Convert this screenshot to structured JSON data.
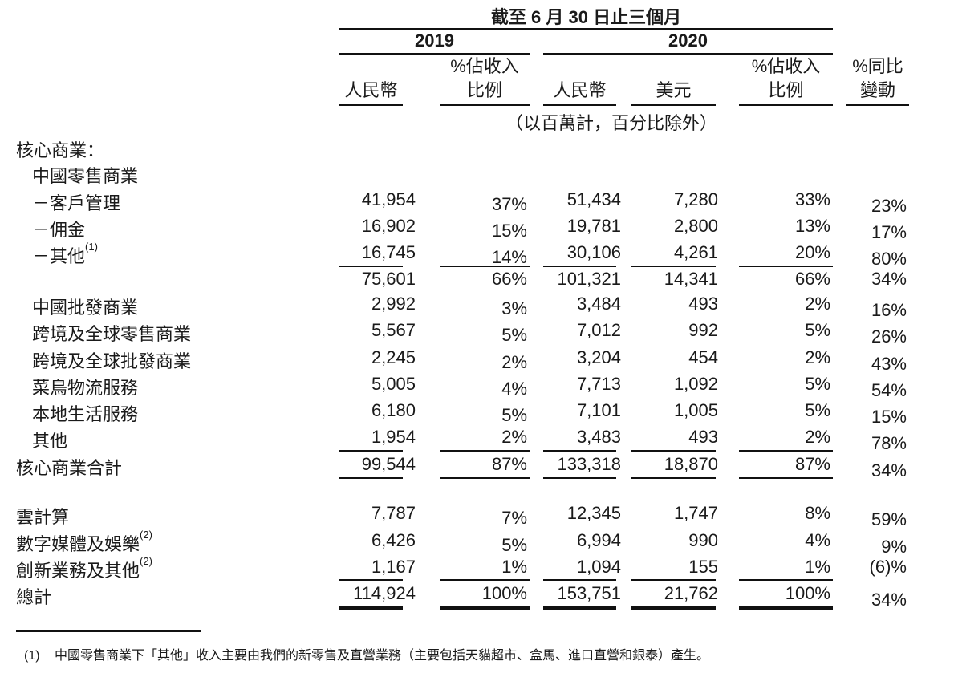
{
  "header": {
    "period_title": "截至 6 月 30 日止三個月",
    "year_2019": "2019",
    "year_2020": "2020",
    "columns": [
      {
        "line1": "",
        "line2": "人民幣"
      },
      {
        "line1": "%佔收入",
        "line2": "比例"
      },
      {
        "line1": "",
        "line2": "人民幣"
      },
      {
        "line1": "",
        "line2": "美元"
      },
      {
        "line1": "%佔收入",
        "line2": "比例"
      },
      {
        "line1": "%同比",
        "line2": "變動"
      }
    ],
    "unit_note": "（以百萬計，百分比除外）"
  },
  "rows": [
    {
      "label": "核心商業：",
      "sup": "",
      "indent": 0,
      "values": [
        "",
        "",
        "",
        "",
        "",
        ""
      ]
    },
    {
      "label": "中國零售商業",
      "sup": "",
      "indent": 1,
      "values": [
        "",
        "",
        "",
        "",
        "",
        ""
      ]
    },
    {
      "label": "－客戶管理",
      "sup": "",
      "indent": 1,
      "values": [
        "41,954",
        "37%",
        "51,434",
        "7,280",
        "33%",
        "23%"
      ]
    },
    {
      "label": "－佣金",
      "sup": "",
      "indent": 1,
      "values": [
        "16,902",
        "15%",
        "19,781",
        "2,800",
        "13%",
        "17%"
      ]
    },
    {
      "label": "－其他",
      "sup": "(1)",
      "indent": 1,
      "values": [
        "16,745",
        "14%",
        "30,106",
        "4,261",
        "20%",
        "80%"
      ]
    },
    {
      "label": "",
      "sup": "",
      "indent": 1,
      "values": [
        "75,601",
        "66%",
        "101,321",
        "14,341",
        "66%",
        "34%"
      ]
    },
    {
      "label": "中國批發商業",
      "sup": "",
      "indent": 1,
      "values": [
        "2,992",
        "3%",
        "3,484",
        "493",
        "2%",
        "16%"
      ]
    },
    {
      "label": "跨境及全球零售商業",
      "sup": "",
      "indent": 1,
      "values": [
        "5,567",
        "5%",
        "7,012",
        "992",
        "5%",
        "26%"
      ]
    },
    {
      "label": "跨境及全球批發商業",
      "sup": "",
      "indent": 1,
      "values": [
        "2,245",
        "2%",
        "3,204",
        "454",
        "2%",
        "43%"
      ]
    },
    {
      "label": "菜鳥物流服務",
      "sup": "",
      "indent": 1,
      "values": [
        "5,005",
        "4%",
        "7,713",
        "1,092",
        "5%",
        "54%"
      ]
    },
    {
      "label": "本地生活服務",
      "sup": "",
      "indent": 1,
      "values": [
        "6,180",
        "5%",
        "7,101",
        "1,005",
        "5%",
        "15%"
      ]
    },
    {
      "label": "其他",
      "sup": "",
      "indent": 1,
      "values": [
        "1,954",
        "2%",
        "3,483",
        "493",
        "2%",
        "78%"
      ]
    },
    {
      "label": "核心商業合計",
      "sup": "",
      "indent": 0,
      "values": [
        "99,544",
        "87%",
        "133,318",
        "18,870",
        "87%",
        "34%"
      ]
    },
    {
      "label": "雲計算",
      "sup": "",
      "indent": 0,
      "values": [
        "7,787",
        "7%",
        "12,345",
        "1,747",
        "8%",
        "59%"
      ]
    },
    {
      "label": "數字媒體及娛樂",
      "sup": "(2)",
      "indent": 0,
      "values": [
        "6,426",
        "5%",
        "6,994",
        "990",
        "4%",
        "9%"
      ]
    },
    {
      "label": "創新業務及其他",
      "sup": "(2)",
      "indent": 0,
      "values": [
        "1,167",
        "1%",
        "1,094",
        "155",
        "1%",
        "(6)%"
      ]
    },
    {
      "label": "總計",
      "sup": "",
      "indent": 0,
      "values": [
        "114,924",
        "100%",
        "153,751",
        "21,762",
        "100%",
        "34%"
      ]
    }
  ],
  "footnote": {
    "number": "(1)",
    "text": "中國零售商業下「其他」收入主要由我們的新零售及直營業務（主要包括天貓超市、盒馬、進口直營和銀泰）產生。"
  }
}
